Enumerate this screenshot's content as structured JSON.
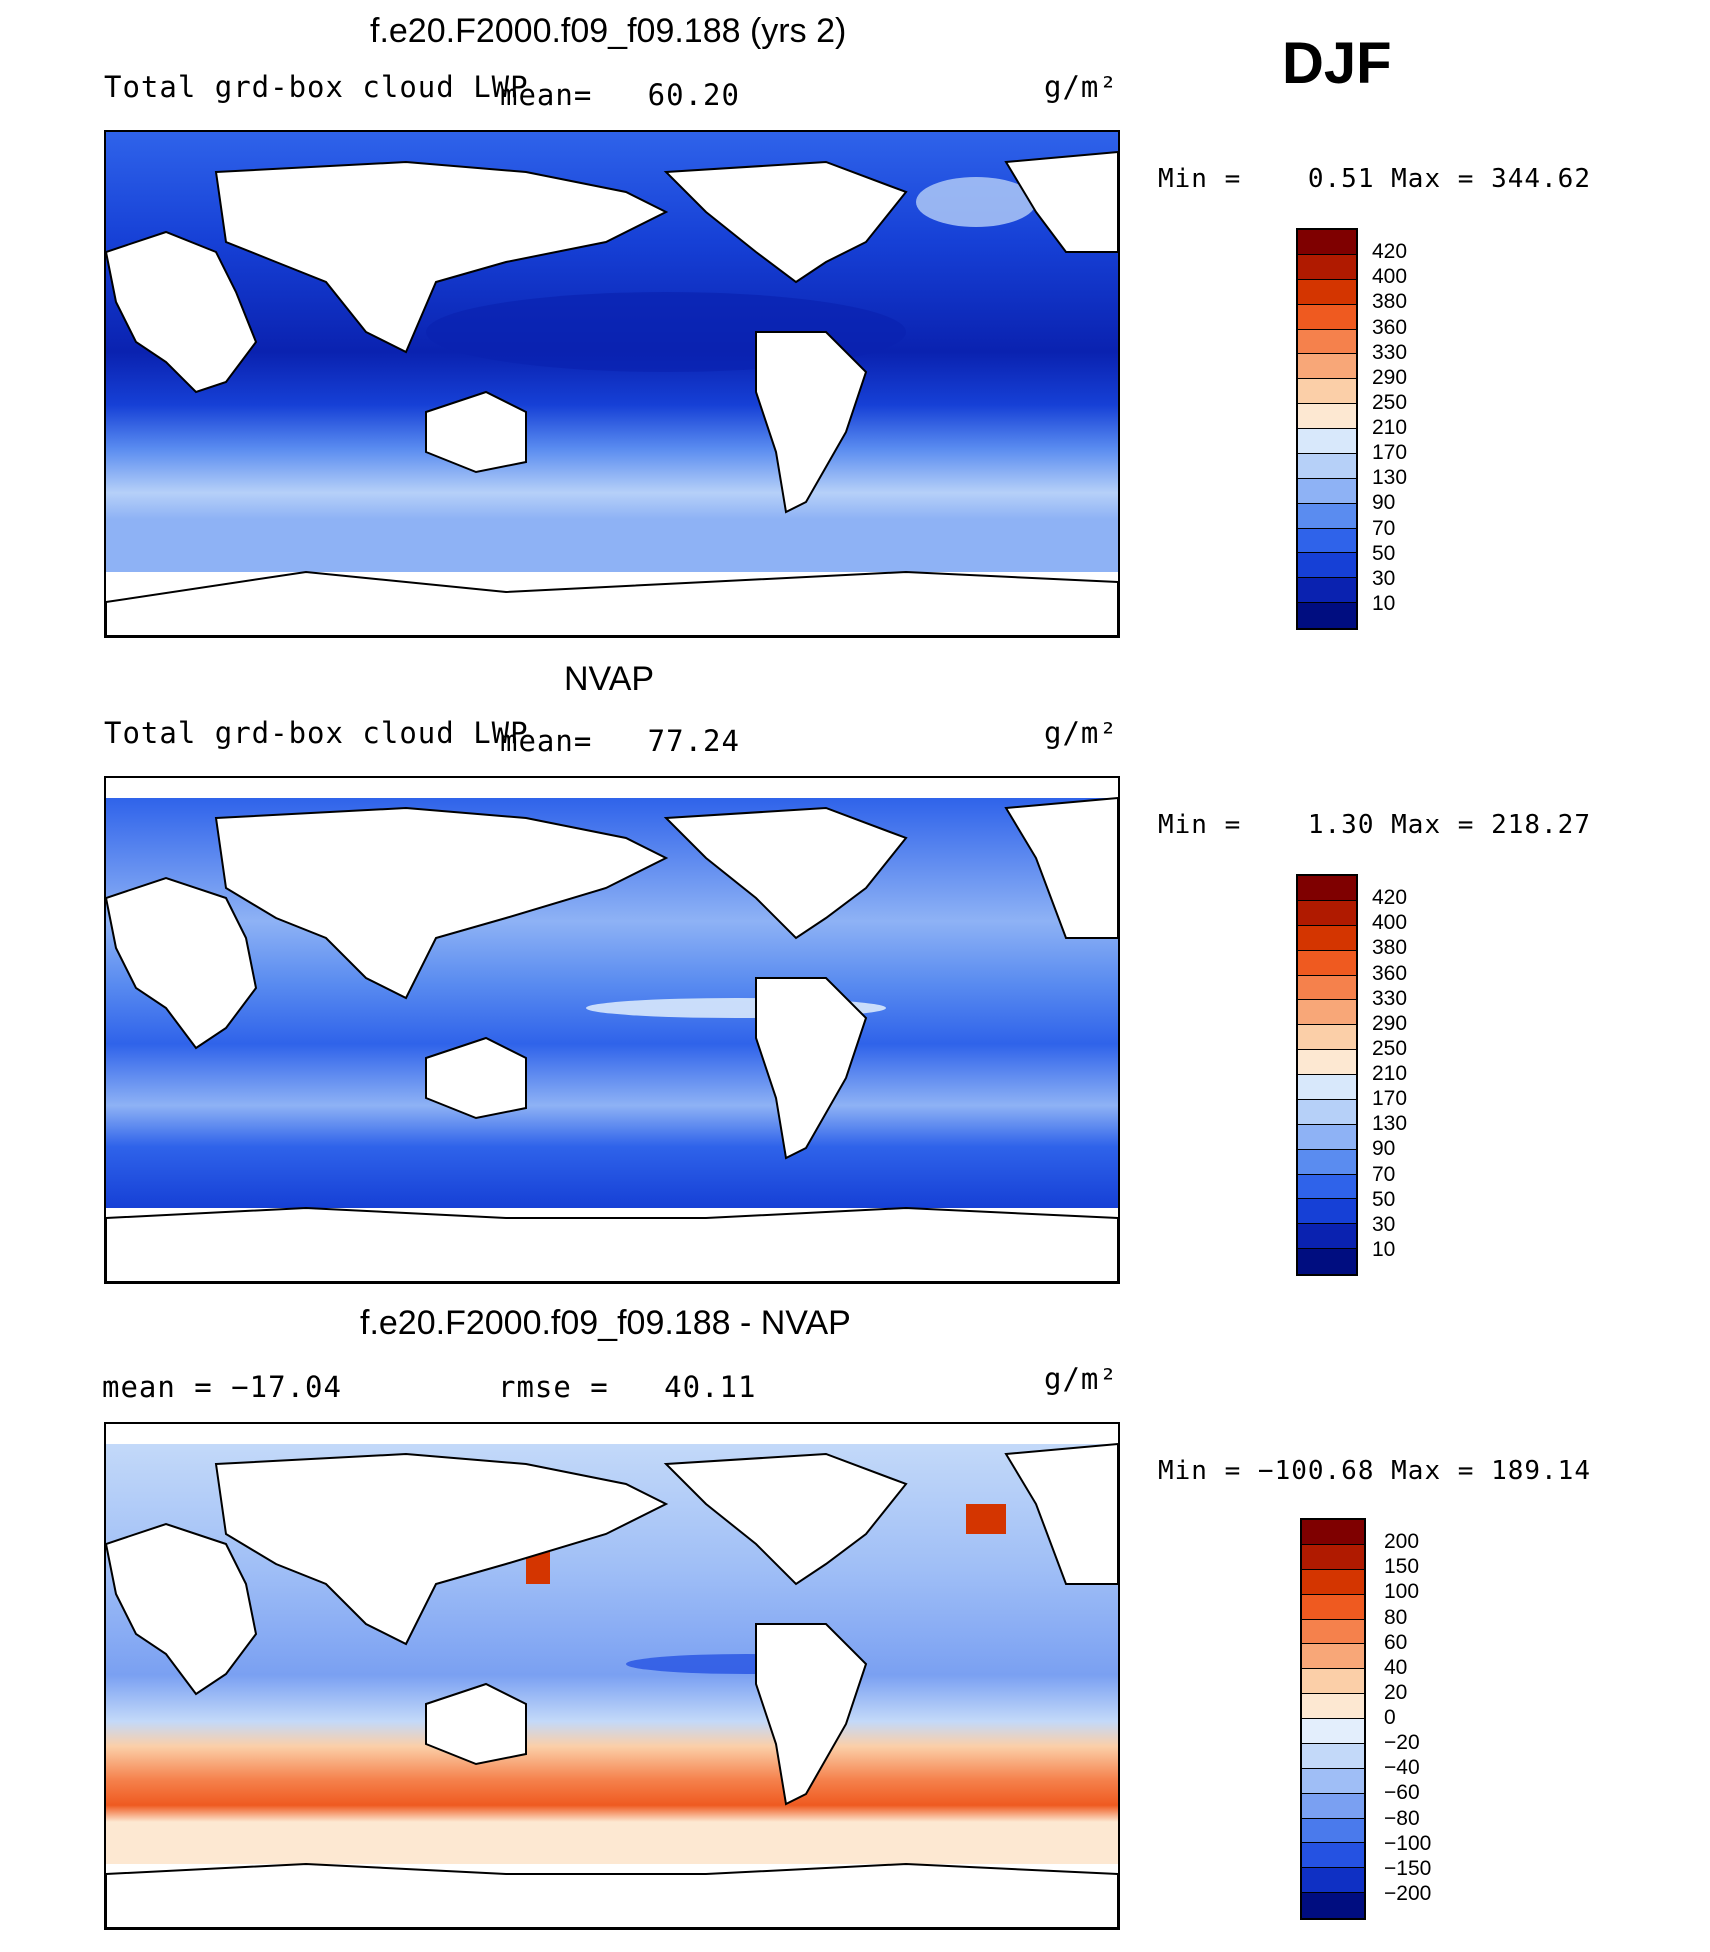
{
  "season": "DJF",
  "chart_data": [
    {
      "type": "heatmap",
      "title": "f.e20.F2000.f09_f09.188 (yrs 2)",
      "left_label": "Total grd-box cloud LWP",
      "center_label": "mean=   60.20",
      "units": "g/m²",
      "minmax": "Min =    0.51 Max = 344.62",
      "mean": 60.2,
      "min": 0.51,
      "max": 344.62,
      "colorbar": {
        "ticks": [
          "420",
          "400",
          "380",
          "360",
          "330",
          "290",
          "250",
          "210",
          "170",
          "130",
          "90",
          "70",
          "50",
          "30",
          "10"
        ],
        "colors": [
          "#7f0000",
          "#b01a00",
          "#d43500",
          "#ef5a20",
          "#f5814c",
          "#f8a778",
          "#fbcfa8",
          "#fde8d2",
          "#d8e8fb",
          "#b6d0f8",
          "#8eb2f5",
          "#5a8cf0",
          "#2f63ea",
          "#1640d6",
          "#0a22b0",
          "#000d80"
        ]
      }
    },
    {
      "type": "heatmap",
      "title": "NVAP",
      "left_label": "Total grd-box cloud LWP",
      "center_label": "mean=   77.24",
      "units": "g/m²",
      "minmax": "Min =    1.30 Max = 218.27",
      "mean": 77.24,
      "min": 1.3,
      "max": 218.27,
      "colorbar": {
        "ticks": [
          "420",
          "400",
          "380",
          "360",
          "330",
          "290",
          "250",
          "210",
          "170",
          "130",
          "90",
          "70",
          "50",
          "30",
          "10"
        ],
        "colors": [
          "#7f0000",
          "#b01a00",
          "#d43500",
          "#ef5a20",
          "#f5814c",
          "#f8a778",
          "#fbcfa8",
          "#fde8d2",
          "#d8e8fb",
          "#b6d0f8",
          "#8eb2f5",
          "#5a8cf0",
          "#2f63ea",
          "#1640d6",
          "#0a22b0",
          "#000d80"
        ]
      }
    },
    {
      "type": "heatmap",
      "title": "f.e20.F2000.f09_f09.188 - NVAP",
      "left_label": "mean = −17.04",
      "center_label": "rmse =   40.11",
      "units": "g/m²",
      "minmax": "Min = −100.68 Max = 189.14",
      "mean": -17.04,
      "rmse": 40.11,
      "min": -100.68,
      "max": 189.14,
      "colorbar": {
        "ticks": [
          "200",
          "150",
          "100",
          "80",
          "60",
          "40",
          "20",
          "0",
          "−20",
          "−40",
          "−60",
          "−80",
          "−100",
          "−150",
          "−200"
        ],
        "colors": [
          "#7f0000",
          "#b01a00",
          "#d43500",
          "#ef5a20",
          "#f5814c",
          "#f8a778",
          "#fbcfa8",
          "#fde8d2",
          "#e3eefc",
          "#c3d9f9",
          "#9fbef6",
          "#7aa0f2",
          "#4a7aec",
          "#2552e2",
          "#0f30c4",
          "#000d80"
        ]
      }
    }
  ]
}
